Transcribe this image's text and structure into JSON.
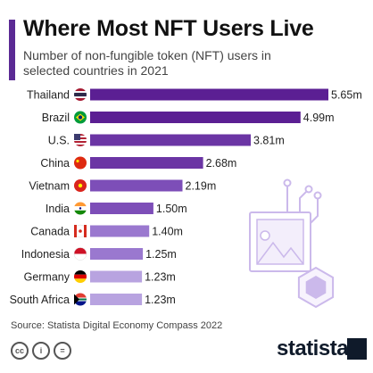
{
  "header": {
    "title": "Where Most NFT Users Live",
    "subtitle": "Number of non-fungible token (NFT) users in selected countries in 2021"
  },
  "footer": {
    "source": "Source: Statista Digital Economy Compass 2022",
    "brand": "statista",
    "license_icons": [
      "cc",
      "by",
      "="
    ]
  },
  "colors": {
    "accent": "#5b2a94",
    "bar_gradient": [
      "#5b1f93",
      "#6b35a4",
      "#7d4eb8",
      "#9a78cf",
      "#b8a3e0"
    ],
    "illustration": "#cbb9eb"
  },
  "chart_data": {
    "type": "bar",
    "orientation": "horizontal",
    "categories": [
      "Thailand",
      "Brazil",
      "U.S.",
      "China",
      "Vietnam",
      "India",
      "Canada",
      "Indonesia",
      "Germany",
      "South Africa"
    ],
    "values": [
      5.65,
      4.99,
      3.81,
      2.68,
      2.19,
      1.5,
      1.4,
      1.25,
      1.23,
      1.23
    ],
    "data_labels": [
      "5.65m",
      "4.99m",
      "3.81m",
      "2.68m",
      "2.19m",
      "1.50m",
      "1.40m",
      "1.25m",
      "1.23m",
      "1.23m"
    ],
    "flag_icons": [
      "thailand-flag-icon",
      "brazil-flag-icon",
      "us-flag-icon",
      "china-flag-icon",
      "vietnam-flag-icon",
      "india-flag-icon",
      "canada-flag-icon",
      "indonesia-flag-icon",
      "germany-flag-icon",
      "south-africa-flag-icon"
    ],
    "unit": "million users",
    "grid": false,
    "legend": "none"
  }
}
